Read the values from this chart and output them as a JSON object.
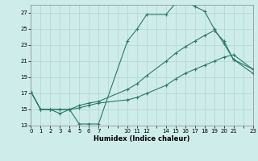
{
  "xlabel": "Humidex (Indice chaleur)",
  "bg_color": "#ceecea",
  "grid_color": "#b8dcd8",
  "line_color": "#2a7a6a",
  "line1_x": [
    0,
    1,
    2,
    3,
    4,
    5,
    6,
    7,
    10,
    11,
    12,
    14,
    15,
    16,
    17,
    18,
    19,
    20,
    21,
    23
  ],
  "line1_y": [
    17.2,
    15.0,
    15.0,
    14.5,
    15.0,
    13.2,
    13.2,
    13.2,
    23.5,
    25.0,
    26.8,
    26.8,
    28.2,
    28.5,
    27.8,
    27.2,
    25.0,
    23.2,
    21.2,
    19.5
  ],
  "line2_x": [
    0,
    1,
    2,
    3,
    4,
    5,
    6,
    7,
    10,
    11,
    12,
    14,
    15,
    16,
    17,
    18,
    19,
    20,
    21,
    23
  ],
  "line2_y": [
    17.2,
    15.0,
    15.0,
    15.0,
    15.0,
    15.5,
    15.8,
    16.0,
    17.5,
    18.2,
    19.2,
    21.0,
    22.0,
    22.8,
    23.5,
    24.2,
    24.8,
    23.5,
    21.2,
    20.0
  ],
  "line3_x": [
    0,
    1,
    2,
    3,
    4,
    5,
    6,
    7,
    10,
    11,
    12,
    14,
    15,
    16,
    17,
    18,
    19,
    20,
    21,
    23
  ],
  "line3_y": [
    17.2,
    15.0,
    15.0,
    15.0,
    15.0,
    15.2,
    15.5,
    15.8,
    16.2,
    16.5,
    17.0,
    18.0,
    18.8,
    19.5,
    20.0,
    20.5,
    21.0,
    21.5,
    21.8,
    20.0
  ],
  "xlim": [
    0,
    23
  ],
  "ylim": [
    13,
    28
  ],
  "yticks": [
    13,
    15,
    17,
    19,
    21,
    23,
    25,
    27
  ],
  "xtick_positions": [
    0,
    1,
    2,
    3,
    4,
    5,
    6,
    7,
    8,
    9,
    10,
    11,
    12,
    13,
    14,
    15,
    16,
    17,
    18,
    19,
    20,
    21,
    22,
    23
  ],
  "xtick_labels": [
    "0",
    "1",
    "2",
    "3",
    "4",
    "5",
    "6",
    "7",
    "",
    "",
    "10",
    "11",
    "12",
    "",
    "14",
    "15",
    "16",
    "17",
    "18",
    "19",
    "20",
    "21",
    "",
    "23"
  ]
}
